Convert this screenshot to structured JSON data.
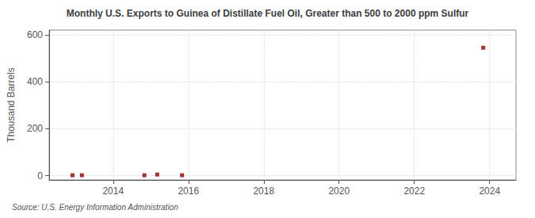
{
  "chart_data": {
    "type": "scatter",
    "title": "Monthly U.S. Exports to Guinea of Distillate Fuel Oil, Greater than 500 to 2000 ppm Sulfur",
    "ylabel": "Thousand Barrels",
    "annotation": "Source: U.S. Energy Information Administration",
    "x": [
      2012.92,
      2013.17,
      2014.83,
      2015.17,
      2015.83,
      2023.83
    ],
    "values": [
      2,
      2,
      2,
      5,
      2,
      545
    ],
    "color": "#8b0000",
    "marker": "square",
    "xlim": [
      2012.3,
      2024.7
    ],
    "xticks": [
      2014,
      2016,
      2018,
      2020,
      2022,
      2024
    ],
    "ylim": [
      -18,
      620
    ],
    "yticks": [
      0,
      200,
      400,
      600
    ],
    "grid": true
  }
}
